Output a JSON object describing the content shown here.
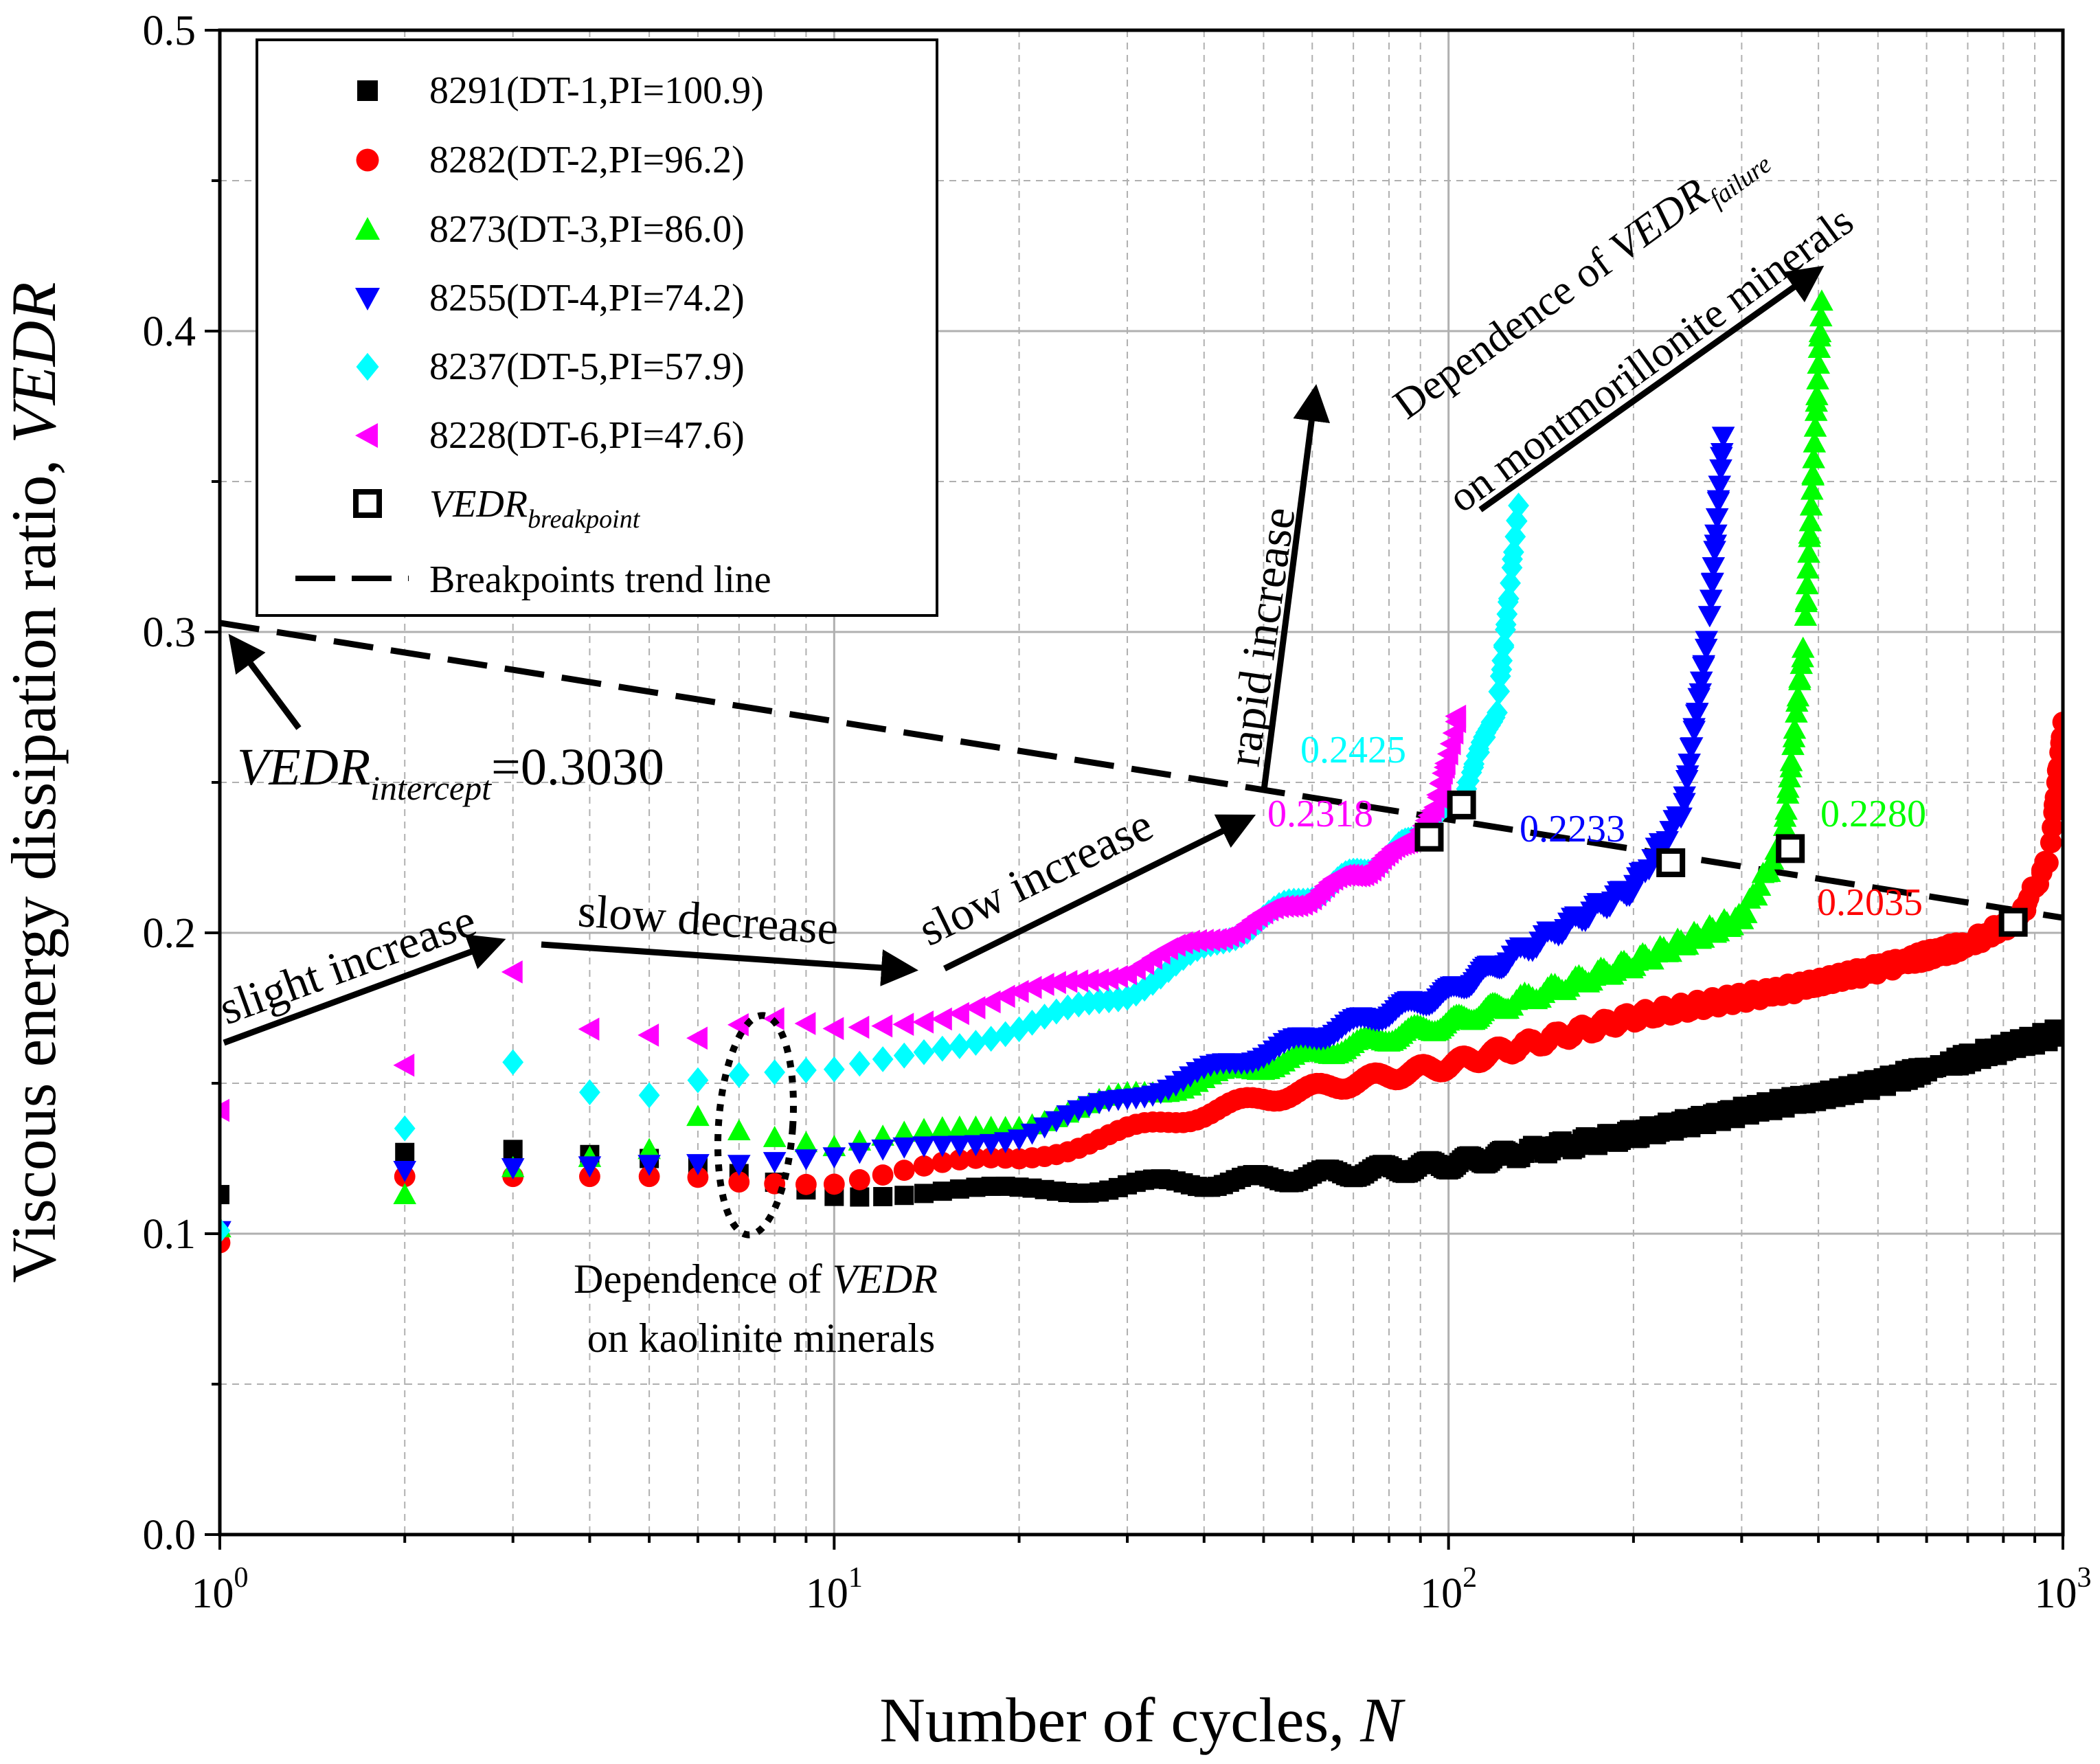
{
  "chart_data": {
    "type": "scatter",
    "xscale": "log",
    "xlim": [
      1,
      1000
    ],
    "ylim": [
      0.0,
      0.5
    ],
    "xlabel": {
      "main": "Number of cycles, ",
      "italic": "N"
    },
    "ylabel": {
      "main": "Viscous energy dissipation ratio, ",
      "italic": "VEDR"
    },
    "xticks": [
      {
        "base": "10",
        "exp": "0",
        "value": 1
      },
      {
        "base": "10",
        "exp": "1",
        "value": 10
      },
      {
        "base": "10",
        "exp": "2",
        "value": 100
      },
      {
        "base": "10",
        "exp": "3",
        "value": 1000
      }
    ],
    "yticks": [
      "0.0",
      "0.1",
      "0.2",
      "0.3",
      "0.4",
      "0.5"
    ],
    "grid": true,
    "series": [
      {
        "name": "8291(DT-1,PI=100.9)",
        "marker": "square",
        "color": "#000000",
        "anchors": [
          [
            1,
            0.113
          ],
          [
            2,
            0.127
          ],
          [
            3,
            0.128
          ],
          [
            5,
            0.125
          ],
          [
            10,
            0.114
          ],
          [
            20,
            0.114
          ],
          [
            30,
            0.116
          ],
          [
            50,
            0.118
          ],
          [
            100,
            0.123
          ],
          [
            200,
            0.133
          ],
          [
            500,
            0.15
          ],
          [
            1000,
            0.167
          ]
        ]
      },
      {
        "name": "8282(DT-2,PI=96.2)",
        "marker": "circle",
        "color": "#ff0000",
        "anchors": [
          [
            1,
            0.097
          ],
          [
            2,
            0.119
          ],
          [
            5,
            0.119
          ],
          [
            10,
            0.118
          ],
          [
            20,
            0.125
          ],
          [
            50,
            0.145
          ],
          [
            100,
            0.156
          ],
          [
            200,
            0.172
          ],
          [
            400,
            0.183
          ],
          [
            700,
            0.196
          ],
          [
            850,
            0.205
          ],
          [
            950,
            0.225
          ],
          [
            1000,
            0.27
          ]
        ]
      },
      {
        "name": "8273(DT-3,PI=86.0)",
        "marker": "triangle-up",
        "color": "#00ff00",
        "anchors": [
          [
            1,
            0.102
          ],
          [
            2,
            0.113
          ],
          [
            3,
            0.122
          ],
          [
            5,
            0.128
          ],
          [
            6,
            0.139
          ],
          [
            10,
            0.129
          ],
          [
            20,
            0.137
          ],
          [
            50,
            0.156
          ],
          [
            100,
            0.17
          ],
          [
            200,
            0.19
          ],
          [
            300,
            0.205
          ],
          [
            350,
            0.23
          ],
          [
            380,
            0.3
          ],
          [
            405,
            0.41
          ]
        ]
      },
      {
        "name": "8255(DT-4,PI=74.2)",
        "marker": "triangle-down",
        "color": "#0000ff",
        "anchors": [
          [
            1,
            0.101
          ],
          [
            2,
            0.121
          ],
          [
            5,
            0.123
          ],
          [
            10,
            0.124
          ],
          [
            20,
            0.133
          ],
          [
            50,
            0.16
          ],
          [
            100,
            0.18
          ],
          [
            200,
            0.215
          ],
          [
            240,
            0.24
          ],
          [
            265,
            0.3
          ],
          [
            280,
            0.365
          ]
        ]
      },
      {
        "name": "8237(DT-5,PI=57.9)",
        "marker": "diamond",
        "color": "#00ffff",
        "anchors": [
          [
            1,
            0.101
          ],
          [
            2,
            0.135
          ],
          [
            3,
            0.157
          ],
          [
            4,
            0.147
          ],
          [
            5,
            0.146
          ],
          [
            6,
            0.151
          ],
          [
            8,
            0.152
          ],
          [
            10,
            0.153
          ],
          [
            15,
            0.163
          ],
          [
            20,
            0.168
          ],
          [
            30,
            0.18
          ],
          [
            50,
            0.205
          ],
          [
            80,
            0.225
          ],
          [
            105,
            0.245
          ],
          [
            120,
            0.275
          ],
          [
            130,
            0.342
          ]
        ]
      },
      {
        "name": "8228(DT-6,PI=47.6)",
        "marker": "triangle-left",
        "color": "#ff00ff",
        "anchors": [
          [
            1,
            0.141
          ],
          [
            2,
            0.156
          ],
          [
            3,
            0.187
          ],
          [
            4,
            0.168
          ],
          [
            5,
            0.166
          ],
          [
            6,
            0.165
          ],
          [
            8,
            0.17
          ],
          [
            10,
            0.168
          ],
          [
            15,
            0.173
          ],
          [
            20,
            0.179
          ],
          [
            30,
            0.188
          ],
          [
            50,
            0.205
          ],
          [
            80,
            0.225
          ],
          [
            95,
            0.24
          ],
          [
            100,
            0.26
          ],
          [
            103,
            0.272
          ]
        ]
      }
    ],
    "breakpoints": {
      "name": "VEDR",
      "name_sub": "breakpoint",
      "points": [
        [
          93,
          0.2318
        ],
        [
          105,
          0.2425
        ],
        [
          230,
          0.2233
        ],
        [
          360,
          0.228
        ],
        [
          830,
          0.2035
        ]
      ]
    },
    "trend_line": {
      "name": "Breakpoints trend line",
      "from": [
        1,
        0.303
      ],
      "to": [
        1000,
        0.205
      ]
    },
    "point_labels": [
      {
        "text": "0.2425",
        "color": "#00ffff"
      },
      {
        "text": "0.2318",
        "color": "#ff00ff"
      },
      {
        "text": "0.2233",
        "color": "#0000ff"
      },
      {
        "text": "0.2280",
        "color": "#00ff00"
      },
      {
        "text": "0.2035",
        "color": "#ff0000"
      }
    ],
    "annotations": {
      "intercept": {
        "main": "VEDR",
        "sub": "intercept",
        "rest": "=0.3030"
      },
      "slight_increase": "slight increase",
      "slow_decrease": "slow decrease",
      "slow_increase": "slow increase",
      "rapid_increase": "rapid increase",
      "kaolinite_line1_pre": "Dependence of ",
      "kaolinite_line1_it": "VEDR",
      "kaolinite_line2": "on kaolinite minerals",
      "mont_line1_pre": "Dependence of ",
      "mont_line1_it": "VEDR",
      "mont_line1_sub": "failure",
      "mont_line2": "on montmorillonite minerals"
    }
  }
}
